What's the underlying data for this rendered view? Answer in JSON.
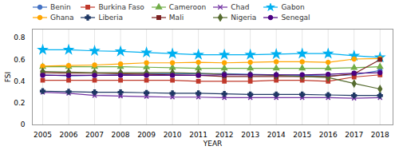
{
  "chart_data": {
    "type": "line",
    "xlabel": "YEAR",
    "ylabel": "FSI",
    "x": [
      2005,
      2006,
      2007,
      2008,
      2009,
      2010,
      2011,
      2012,
      2013,
      2014,
      2015,
      2016,
      2017,
      2018
    ],
    "series": [
      {
        "name": "Benin",
        "color": "#4472C4",
        "marker": "circle",
        "values": [
          0.46,
          0.45,
          0.455,
          0.46,
          0.47,
          0.47,
          0.47,
          0.47,
          0.465,
          0.46,
          0.455,
          0.45,
          0.46,
          0.5
        ]
      },
      {
        "name": "Burkina Faso",
        "color": "#C0392B",
        "marker": "square",
        "values": [
          0.41,
          0.41,
          0.41,
          0.41,
          0.41,
          0.41,
          0.4,
          0.4,
          0.4,
          0.41,
          0.41,
          0.4,
          0.44,
          0.46
        ]
      },
      {
        "name": "Cameroon",
        "color": "#70AD47",
        "marker": "triangle",
        "values": [
          0.535,
          0.535,
          0.535,
          0.535,
          0.53,
          0.525,
          0.52,
          0.52,
          0.52,
          0.52,
          0.52,
          0.52,
          0.525,
          0.535
        ]
      },
      {
        "name": "Chad",
        "color": "#7030A0",
        "marker": "x",
        "values": [
          0.3,
          0.29,
          0.27,
          0.265,
          0.26,
          0.255,
          0.255,
          0.25,
          0.25,
          0.25,
          0.25,
          0.25,
          0.245,
          0.25
        ]
      },
      {
        "name": "Gabon",
        "color": "#00B0F0",
        "marker": "star",
        "values": [
          0.69,
          0.69,
          0.68,
          0.675,
          0.665,
          0.655,
          0.645,
          0.645,
          0.645,
          0.65,
          0.655,
          0.655,
          0.635,
          0.62
        ]
      },
      {
        "name": "Ghana",
        "color": "#FFA500",
        "marker": "circle",
        "values": [
          0.54,
          0.545,
          0.55,
          0.56,
          0.57,
          0.57,
          0.575,
          0.57,
          0.575,
          0.58,
          0.58,
          0.575,
          0.605,
          0.61
        ]
      },
      {
        "name": "Liberia",
        "color": "#1F3864",
        "marker": "plus",
        "values": [
          0.31,
          0.305,
          0.3,
          0.3,
          0.295,
          0.29,
          0.29,
          0.285,
          0.28,
          0.28,
          0.28,
          0.275,
          0.27,
          0.27
        ]
      },
      {
        "name": "Mali",
        "color": "#7B2020",
        "marker": "square",
        "values": [
          0.48,
          0.475,
          0.475,
          0.47,
          0.465,
          0.46,
          0.455,
          0.445,
          0.445,
          0.445,
          0.445,
          0.445,
          0.47,
          0.6
        ]
      },
      {
        "name": "Nigeria",
        "color": "#556B2F",
        "marker": "diamond",
        "values": [
          0.49,
          0.485,
          0.48,
          0.48,
          0.48,
          0.48,
          0.475,
          0.465,
          0.46,
          0.455,
          0.445,
          0.435,
          0.38,
          0.33
        ]
      },
      {
        "name": "Senegal",
        "color": "#4B0082",
        "marker": "circle",
        "values": [
          0.455,
          0.455,
          0.455,
          0.455,
          0.455,
          0.455,
          0.455,
          0.46,
          0.46,
          0.46,
          0.46,
          0.465,
          0.475,
          0.48
        ]
      }
    ],
    "xlim": [
      2004.6,
      2018.5
    ],
    "xticks": [
      2005,
      2006,
      2007,
      2008,
      2009,
      2010,
      2011,
      2012,
      2013,
      2014,
      2015,
      2016,
      2017,
      2018
    ],
    "ylim": [
      0,
      0.88
    ],
    "yticks": [
      0,
      0.2,
      0.4,
      0.6,
      0.8
    ],
    "grid": "x",
    "legend": "top"
  }
}
